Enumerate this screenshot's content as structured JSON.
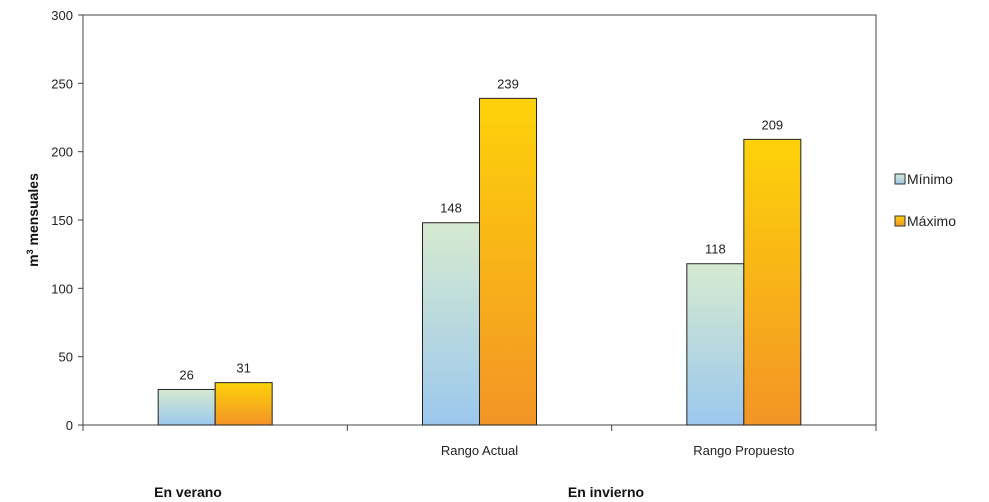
{
  "chart_data": {
    "type": "bar",
    "ylabel_base": "m",
    "ylabel_sup": "3",
    "ylabel_rest": " mensuales",
    "ylim": [
      0,
      300
    ],
    "yticks": [
      "0",
      "50",
      "100",
      "150",
      "200",
      "250",
      "300"
    ],
    "categories": [
      "",
      "Rango Actual",
      "Rango Propuesto"
    ],
    "groups": [
      "En verano",
      "En invierno"
    ],
    "series": [
      {
        "name": "Mínimo",
        "values": [
          26,
          148,
          118
        ],
        "value_labels": [
          "26",
          "148",
          "118"
        ],
        "colors": [
          "#9cc8ee",
          "#d6ead0"
        ]
      },
      {
        "name": "Máximo",
        "values": [
          31,
          239,
          209
        ],
        "value_labels": [
          "31",
          "239",
          "209"
        ],
        "colors": [
          "#f39426",
          "#fdd20a"
        ]
      }
    ],
    "legend_position": "right",
    "grid": false
  }
}
